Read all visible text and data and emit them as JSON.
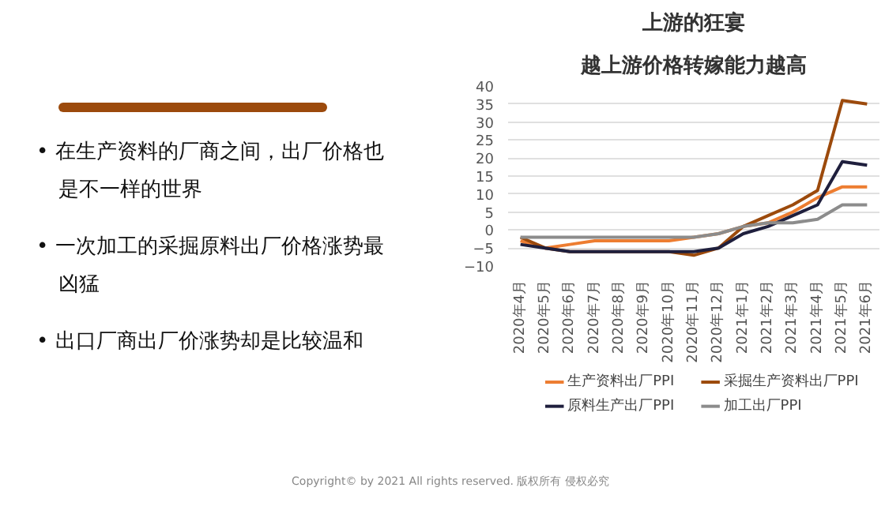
{
  "chart_data": {
    "type": "line",
    "title": "上游的狂宴",
    "subtitle": "越上游价格转嫁能力越高",
    "categories": [
      "2020年4月",
      "2020年5月",
      "2020年6月",
      "2020年7月",
      "2020年8月",
      "2020年9月",
      "2020年10月",
      "2020年11月",
      "2020年12月",
      "2021年1月",
      "2021年2月",
      "2021年3月",
      "2021年4月",
      "2021年5月",
      "2021年6月"
    ],
    "series": [
      {
        "name": "生产资料出厂PPI",
        "color": "#ed7d31",
        "values": [
          -3,
          -5,
          -4,
          -3,
          -3,
          -3,
          -3,
          -2,
          -1,
          1,
          2,
          5,
          9,
          12,
          12
        ]
      },
      {
        "name": "采掘生产资料出厂PPI",
        "color": "#9c4a0c",
        "values": [
          -2,
          -5,
          -6,
          -6,
          -6,
          -6,
          -6,
          -7,
          -5,
          1,
          4,
          7,
          11,
          36,
          35
        ]
      },
      {
        "name": "原料生产出厂PPI",
        "color": "#1f1f3d",
        "values": [
          -4,
          -5,
          -6,
          -6,
          -6,
          -6,
          -6,
          -6,
          -5,
          -1,
          1,
          4,
          7,
          19,
          18
        ]
      },
      {
        "name": "加工出厂PPI",
        "color": "#8c8c8c",
        "values": [
          -2,
          -2,
          -2,
          -2,
          -2,
          -2,
          -2,
          -2,
          -1,
          1,
          2,
          2,
          3,
          7,
          7
        ]
      }
    ],
    "ylim": [
      -10,
      40
    ],
    "yticks": [
      -10,
      -5,
      0,
      5,
      10,
      15,
      20,
      25,
      30,
      35,
      40
    ],
    "grid": "y",
    "legend": "bottom",
    "annotations": [
      "• 在生产资料的厂商之间，出厂价格也是不一样的世界",
      "• 一次加工的采掘原料出厂价格涨势最凶猛",
      "• 出口厂商出厂价涨势却是比较温和",
      "Copyright© by 2021 All rights reserved. 版权所有 侵权必究"
    ]
  }
}
